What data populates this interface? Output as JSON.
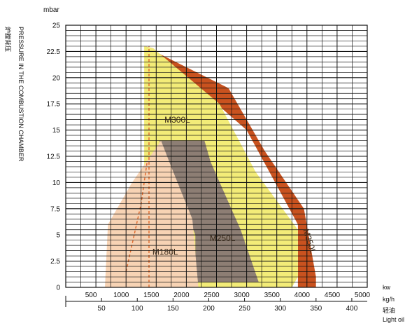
{
  "chart_data": {
    "type": "area",
    "title": "",
    "ylabel_unit": "mbar",
    "ylabel_cn": "炉膛背压",
    "ylabel_en": "PRESSURE IN THE COMBUSTION CHAMBER",
    "x_unit_kw": "kw",
    "x_unit_kgh": "kg/h",
    "x_unit_fuel_cn": "轻油",
    "x_unit_fuel_en": "Light oil",
    "ylim": [
      0,
      25
    ],
    "xlim": [
      0,
      5000
    ],
    "grid": true,
    "y_ticks": [
      "0",
      "2.5",
      "5",
      "7.5",
      "10",
      "12.5",
      "15",
      "17.5",
      "20",
      "22.5",
      "25"
    ],
    "x_ticks_kw": [
      "500",
      "1000",
      "1500",
      "2000",
      "2500",
      "3000",
      "3500",
      "4000",
      "4500",
      "5000"
    ],
    "x_ticks_kgh": [
      "50",
      "100",
      "150",
      "200",
      "250",
      "300",
      "350",
      "400"
    ],
    "colors": {
      "M350L": "#c9521f",
      "M300L": "#f3ec78",
      "M250L": "#8d7e74",
      "M180L": "#f7d3b4",
      "dashed": "#e26a2c",
      "grid": "#111111"
    },
    "series": [
      {
        "name": "M350L",
        "x": [
          1300,
          2700,
          3300,
          3950,
          4150,
          4150,
          3850,
          3850,
          3000,
          1450,
          1300
        ],
        "y": [
          23,
          19,
          13,
          7.5,
          1,
          0,
          0,
          6,
          15,
          22.8,
          23
        ]
      },
      {
        "name": "M300L",
        "x": [
          1300,
          1450,
          2550,
          3150,
          3850,
          3850,
          3750,
          1300
        ],
        "y": [
          23,
          22.8,
          17.5,
          11,
          5.5,
          1,
          0,
          0
        ]
      },
      {
        "name": "M250L",
        "x": [
          1550,
          2300,
          2400,
          2900,
          3200,
          2150,
          2150,
          1700
        ],
        "y": [
          14,
          14,
          12,
          5.5,
          0.5,
          0.5,
          5,
          12
        ]
      },
      {
        "name": "M180L",
        "x": [
          700,
          1100,
          1580,
          1750,
          2100,
          2200,
          1550,
          650
        ],
        "y": [
          6,
          10,
          14,
          11.5,
          6.5,
          0,
          0,
          0
        ]
      }
    ],
    "dashed_lines": [
      {
        "name": "M300L-min-dashed",
        "x": [
          1380,
          1380
        ],
        "y": [
          0,
          23
        ]
      },
      {
        "name": "M180L-min-dashed",
        "x": [
          1000,
          1250,
          1350
        ],
        "y": [
          1.5,
          8,
          12
        ]
      }
    ],
    "labels": [
      {
        "text": "M300L",
        "x": 1850,
        "y": 15.7
      },
      {
        "text": "M250L",
        "x": 2600,
        "y": 4.4
      },
      {
        "text": "M180L",
        "x": 1650,
        "y": 3.1
      },
      {
        "text": "M350L",
        "x": 4000,
        "y": 4.3,
        "rotate": 72
      }
    ]
  }
}
